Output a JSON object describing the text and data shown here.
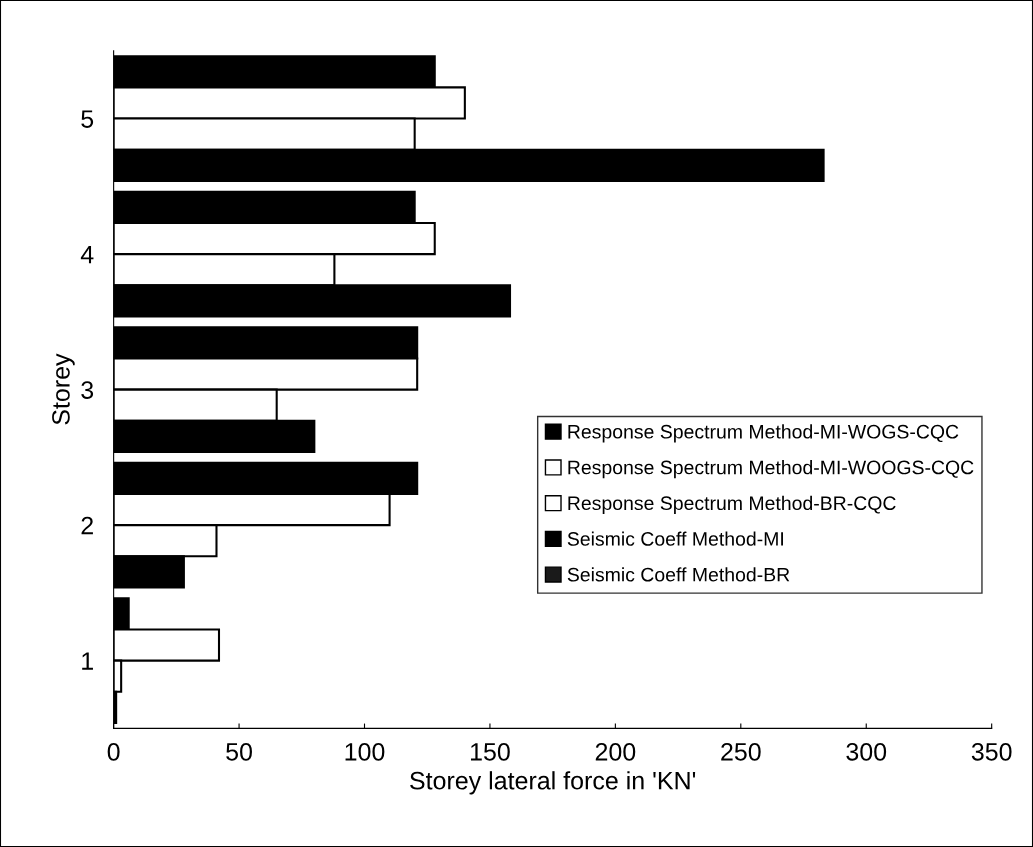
{
  "chart_data": {
    "type": "bar",
    "orientation": "horizontal",
    "xlabel": "Storey lateral force in 'KN'",
    "ylabel": "Storey",
    "categories": [
      "5",
      "4",
      "3",
      "2",
      "1"
    ],
    "series": [
      {
        "name": "Response Spectrum Method-MI-WOGS-CQC",
        "color": "#000000",
        "values": [
          128,
          120,
          121,
          121,
          6
        ]
      },
      {
        "name": "Response Spectrum Method-MI-WOOGS-CQC",
        "color": "#ffffff",
        "values": [
          140,
          128,
          121,
          110,
          42
        ]
      },
      {
        "name": "Response Spectrum Method-BR-CQC",
        "color": "#ffffff",
        "values": [
          120,
          88,
          65,
          41,
          3
        ]
      },
      {
        "name": "Seismic Coeff Method-MI",
        "color": "#000000",
        "values": [
          283,
          158,
          80,
          28,
          1
        ]
      },
      {
        "name": "Seismic Coeff Method-BR",
        "color": "#1a1a1a",
        "values": [
          null,
          null,
          null,
          null,
          null
        ]
      }
    ],
    "xlim": [
      0,
      350
    ],
    "xticks": [
      0,
      50,
      100,
      150,
      200,
      250,
      300,
      350
    ],
    "grid": false,
    "legend": "right"
  }
}
